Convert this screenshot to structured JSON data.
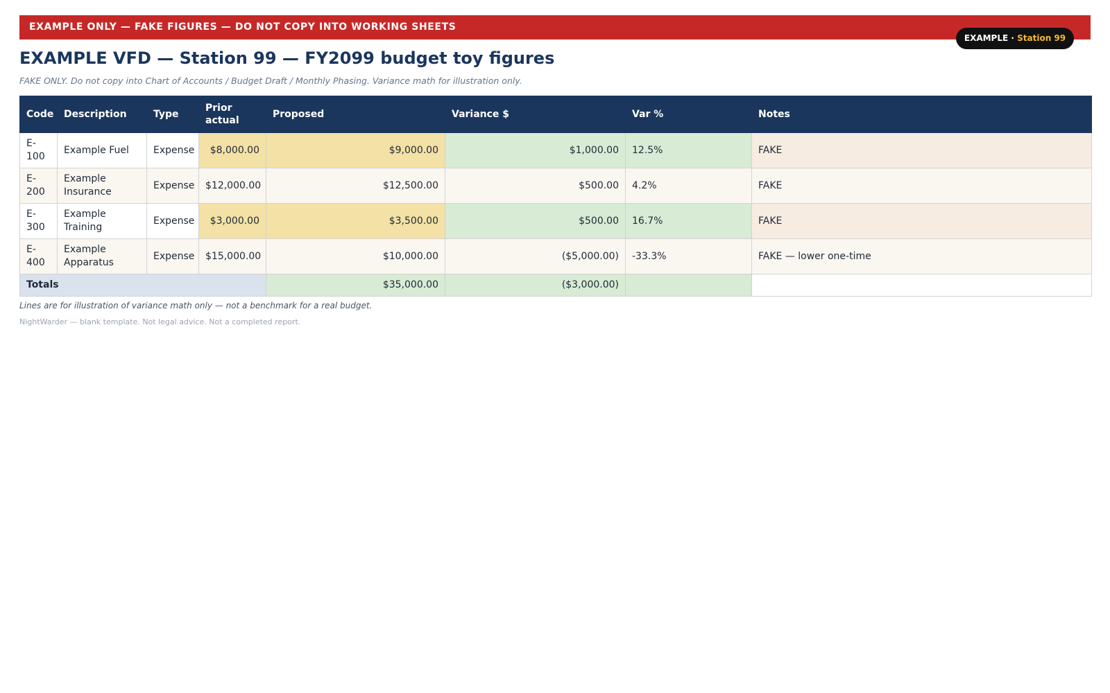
{
  "banner": {
    "text": "EXAMPLE ONLY — FAKE FIGURES — DO NOT COPY INTO WORKING SHEETS"
  },
  "badge": {
    "prefix": "EXAMPLE ·",
    "station": "Station 99"
  },
  "title": "EXAMPLE VFD — Station 99 — FY2099 budget toy figures",
  "subtitle": "FAKE ONLY. Do not copy into Chart of Accounts / Budget Draft / Monthly Phasing. Variance math for illustration only.",
  "table": {
    "headers": {
      "code": "Code",
      "description": "Description",
      "type": "Type",
      "prior": "Prior actual",
      "proposed": "Proposed",
      "variance": "Variance $",
      "var_pct": "Var %",
      "notes": "Notes"
    },
    "rows": [
      {
        "code": "E-100",
        "description": "Example Fuel",
        "type": "Expense",
        "prior": "$8,000.00",
        "proposed": "$9,000.00",
        "variance": "$1,000.00",
        "var_pct": "12.5%",
        "notes": "FAKE"
      },
      {
        "code": "E-200",
        "description": "Example Insurance",
        "type": "Expense",
        "prior": "$12,000.00",
        "proposed": "$12,500.00",
        "variance": "$500.00",
        "var_pct": "4.2%",
        "notes": "FAKE"
      },
      {
        "code": "E-300",
        "description": "Example Training",
        "type": "Expense",
        "prior": "$3,000.00",
        "proposed": "$3,500.00",
        "variance": "$500.00",
        "var_pct": "16.7%",
        "notes": "FAKE"
      },
      {
        "code": "E-400",
        "description": "Example Apparatus",
        "type": "Expense",
        "prior": "$15,000.00",
        "proposed": "$10,000.00",
        "variance": "($5,000.00)",
        "var_pct": "-33.3%",
        "notes": "FAKE — lower one-time"
      }
    ],
    "totals": {
      "label": "Totals",
      "proposed": "$35,000.00",
      "variance": "($3,000.00)"
    }
  },
  "footnote": "Lines are for illustration of variance math only — not a benchmark for a real budget.",
  "footer": "NightWarder — blank template. Not legal advice. Not a completed report.",
  "colors": {
    "banner": "#c62828",
    "header": "#1b365d",
    "badge_accent": "#f5b82e",
    "highlight_yellow": "#f3e1a5",
    "highlight_green": "#d8ebd5"
  }
}
